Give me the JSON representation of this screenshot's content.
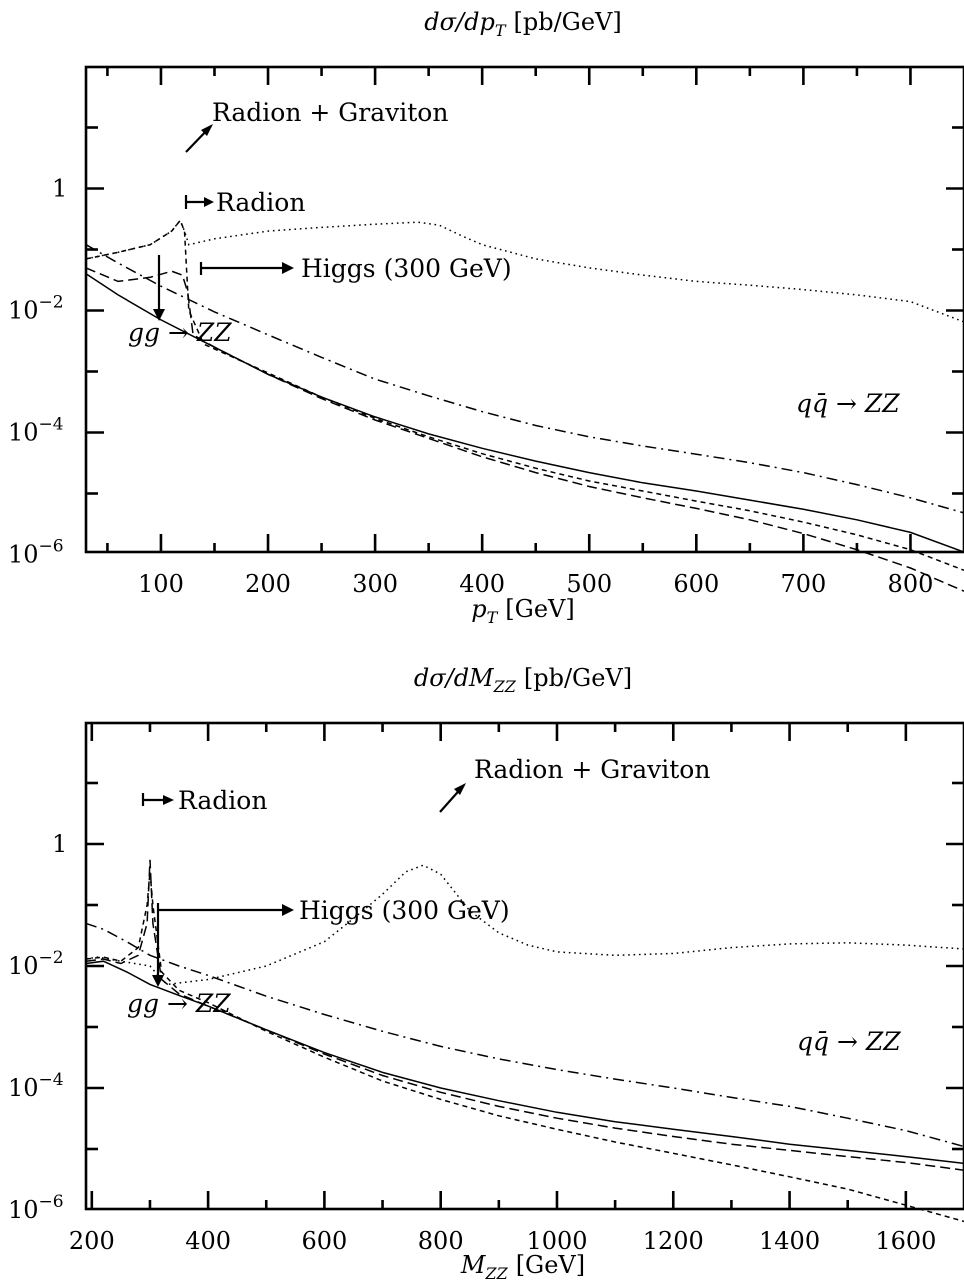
{
  "chart_data": [
    {
      "type": "line",
      "title": "dσ/dp_T [pb/GeV]",
      "title_parts": {
        "main": "dσ/dp",
        "sub": "T",
        "unit": "[pb/GeV]"
      },
      "xlabel": "p_T [GeV]",
      "xlabel_parts": {
        "main": "p",
        "sub": "T",
        "unit": "[GeV]"
      },
      "xlim": [
        30,
        850
      ],
      "ylim_log10": [
        -7,
        1
      ],
      "y_scale": "log",
      "x_ticks": [
        "100",
        "200",
        "300",
        "400",
        "500",
        "600",
        "700",
        "800"
      ],
      "x_tick_values": [
        100,
        200,
        300,
        400,
        500,
        600,
        700,
        800
      ],
      "y_ticks": [
        {
          "value": 1,
          "base": "1",
          "exp": ""
        },
        {
          "value": 0.01,
          "base": "10",
          "exp": "−2"
        },
        {
          "value": 0.0001,
          "base": "10",
          "exp": "−4"
        },
        {
          "value": 1e-06,
          "base": "10",
          "exp": "−6"
        }
      ],
      "annotations": {
        "rg": "Radion + Graviton",
        "radion": "Radion",
        "higgs": "Higgs (300 GeV)",
        "gg": "gg → ZZ",
        "qq": "qq̄ → ZZ"
      },
      "series": [
        {
          "style": "solid",
          "x": [
            30,
            60,
            100,
            150,
            200,
            250,
            300,
            350,
            400,
            450,
            500,
            550,
            600,
            650,
            700,
            750,
            800,
            850
          ],
          "y": [
            0.04,
            0.018,
            0.007,
            0.0025,
            0.0009,
            0.00038,
            0.00018,
            9.5e-05,
            5.5e-05,
            3.4e-05,
            2.2e-05,
            1.5e-05,
            1.1e-05,
            7.8e-06,
            5.5e-06,
            3.7e-06,
            2.3e-06,
            1.1e-06
          ]
        },
        {
          "style": "dashdot",
          "x": [
            30,
            60,
            100,
            150,
            200,
            250,
            300,
            350,
            400,
            450,
            500,
            550,
            600,
            650,
            700,
            750,
            800,
            850
          ],
          "y": [
            0.12,
            0.06,
            0.025,
            0.0095,
            0.004,
            0.0017,
            0.00075,
            0.0004,
            0.00022,
            0.00013,
            8.5e-05,
            6e-05,
            4.4e-05,
            3.2e-05,
            2.2e-05,
            1.4e-05,
            8.5e-06,
            4.8e-06
          ]
        },
        {
          "style": "longdash",
          "x": [
            30,
            60,
            90,
            110,
            120,
            125,
            130,
            150,
            200,
            250,
            300,
            350,
            400,
            450,
            500,
            550,
            600,
            650,
            700,
            750,
            800,
            850
          ],
          "y": [
            0.05,
            0.03,
            0.035,
            0.044,
            0.038,
            0.02,
            0.004,
            0.0025,
            0.0009,
            0.00036,
            0.00016,
            8e-05,
            4e-05,
            2.2e-05,
            1.3e-05,
            8.5e-06,
            5.7e-06,
            3.7e-06,
            2.2e-06,
            1.2e-06,
            6e-07,
            2.5e-07
          ]
        },
        {
          "style": "shortdash",
          "x": [
            30,
            60,
            90,
            110,
            118,
            122,
            126,
            140,
            200,
            250,
            300,
            350,
            400,
            450,
            500,
            550,
            600,
            650,
            700,
            750,
            800,
            850
          ],
          "y": [
            0.07,
            0.09,
            0.12,
            0.2,
            0.3,
            0.2,
            0.01,
            0.0028,
            0.00095,
            0.00038,
            0.00017,
            8.5e-05,
            4.5e-05,
            2.6e-05,
            1.6e-05,
            1.1e-05,
            7.5e-06,
            5.2e-06,
            3.4e-06,
            2.1e-06,
            1.2e-06,
            5.5e-07
          ]
        },
        {
          "style": "dotted",
          "x": [
            30,
            60,
            90,
            110,
            118,
            122,
            126,
            150,
            200,
            250,
            300,
            340,
            360,
            380,
            400,
            450,
            500,
            550,
            600,
            650,
            700,
            750,
            800,
            850
          ],
          "y": [
            0.07,
            0.09,
            0.12,
            0.2,
            0.3,
            0.2,
            0.12,
            0.15,
            0.2,
            0.23,
            0.26,
            0.28,
            0.25,
            0.17,
            0.12,
            0.07,
            0.05,
            0.038,
            0.03,
            0.026,
            0.022,
            0.018,
            0.014,
            0.0065
          ]
        }
      ]
    },
    {
      "type": "line",
      "title": "dσ/dM_ZZ [pb/GeV]",
      "title_parts": {
        "main": "dσ/dM",
        "sub": "ZZ",
        "unit": "[pb/GeV]"
      },
      "xlabel": "M_ZZ [GeV]",
      "xlabel_parts": {
        "main": "M",
        "sub": "ZZ",
        "unit": "[GeV]"
      },
      "xlim": [
        190,
        1700
      ],
      "ylim_log10": [
        -7,
        1
      ],
      "y_scale": "log",
      "x_ticks": [
        "200",
        "400",
        "600",
        "800",
        "1000",
        "1200",
        "1400",
        "1600"
      ],
      "x_tick_values": [
        200,
        400,
        600,
        800,
        1000,
        1200,
        1400,
        1600
      ],
      "y_ticks": [
        {
          "value": 1,
          "base": "1",
          "exp": ""
        },
        {
          "value": 0.01,
          "base": "10",
          "exp": "−2"
        },
        {
          "value": 0.0001,
          "base": "10",
          "exp": "−4"
        },
        {
          "value": 1e-06,
          "base": "10",
          "exp": "−6"
        }
      ],
      "annotations": {
        "rg": "Radion + Graviton",
        "radion": "Radion",
        "higgs": "Higgs (300 GeV)",
        "gg": "gg → ZZ",
        "qq": "qq̄ → ZZ"
      },
      "series": [
        {
          "style": "solid",
          "x": [
            190,
            220,
            260,
            300,
            350,
            400,
            500,
            600,
            700,
            800,
            900,
            1000,
            1100,
            1200,
            1300,
            1400,
            1500,
            1600,
            1700
          ],
          "y": [
            0.011,
            0.012,
            0.008,
            0.005,
            0.0033,
            0.0022,
            0.0009,
            0.00038,
            0.00018,
            0.0001,
            6.2e-05,
            4e-05,
            2.8e-05,
            2.1e-05,
            1.6e-05,
            1.2e-05,
            9.5e-06,
            7.5e-06,
            5.8e-06
          ]
        },
        {
          "style": "dashdot",
          "x": [
            190,
            220,
            260,
            300,
            350,
            400,
            500,
            600,
            700,
            800,
            900,
            1000,
            1100,
            1200,
            1300,
            1400,
            1500,
            1600,
            1700
          ],
          "y": [
            0.05,
            0.04,
            0.025,
            0.015,
            0.01,
            0.007,
            0.0032,
            0.0016,
            0.00085,
            0.00048,
            0.0003,
            0.0002,
            0.00014,
            0.0001,
            7e-05,
            5e-05,
            3.2e-05,
            2e-05,
            1.1e-05
          ]
        },
        {
          "style": "longdash",
          "x": [
            190,
            220,
            250,
            280,
            295,
            300,
            305,
            320,
            350,
            400,
            500,
            600,
            700,
            800,
            900,
            1000,
            1100,
            1200,
            1300,
            1400,
            1500,
            1600,
            1700
          ],
          "y": [
            0.012,
            0.013,
            0.011,
            0.015,
            0.05,
            0.55,
            0.05,
            0.006,
            0.0035,
            0.0022,
            0.0009,
            0.00036,
            0.00016,
            8.5e-05,
            5e-05,
            3.2e-05,
            2.2e-05,
            1.6e-05,
            1.2e-05,
            9.5e-06,
            7.5e-06,
            6e-06,
            4.5e-06
          ]
        },
        {
          "style": "shortdash",
          "x": [
            190,
            220,
            250,
            280,
            295,
            300,
            305,
            320,
            350,
            400,
            500,
            600,
            700,
            800,
            900,
            1000,
            1100,
            1200,
            1300,
            1400,
            1500,
            1600,
            1700
          ],
          "y": [
            0.013,
            0.014,
            0.012,
            0.02,
            0.1,
            0.35,
            0.1,
            0.008,
            0.004,
            0.0025,
            0.00085,
            0.00032,
            0.00013,
            6.5e-05,
            3.5e-05,
            2.1e-05,
            1.3e-05,
            8.5e-06,
            5.5e-06,
            3.5e-06,
            2.2e-06,
            1.2e-06,
            6.5e-07
          ]
        },
        {
          "style": "dotted",
          "x": [
            190,
            210,
            250,
            300,
            320,
            330,
            400,
            500,
            600,
            650,
            700,
            740,
            770,
            800,
            850,
            900,
            950,
            1000,
            1100,
            1200,
            1300,
            1400,
            1500,
            1600,
            1700
          ],
          "y": [
            0.013,
            0.014,
            0.012,
            0.01,
            0.006,
            0.005,
            0.006,
            0.01,
            0.025,
            0.06,
            0.15,
            0.35,
            0.45,
            0.32,
            0.08,
            0.035,
            0.022,
            0.017,
            0.015,
            0.016,
            0.02,
            0.023,
            0.024,
            0.022,
            0.019
          ]
        }
      ]
    }
  ]
}
